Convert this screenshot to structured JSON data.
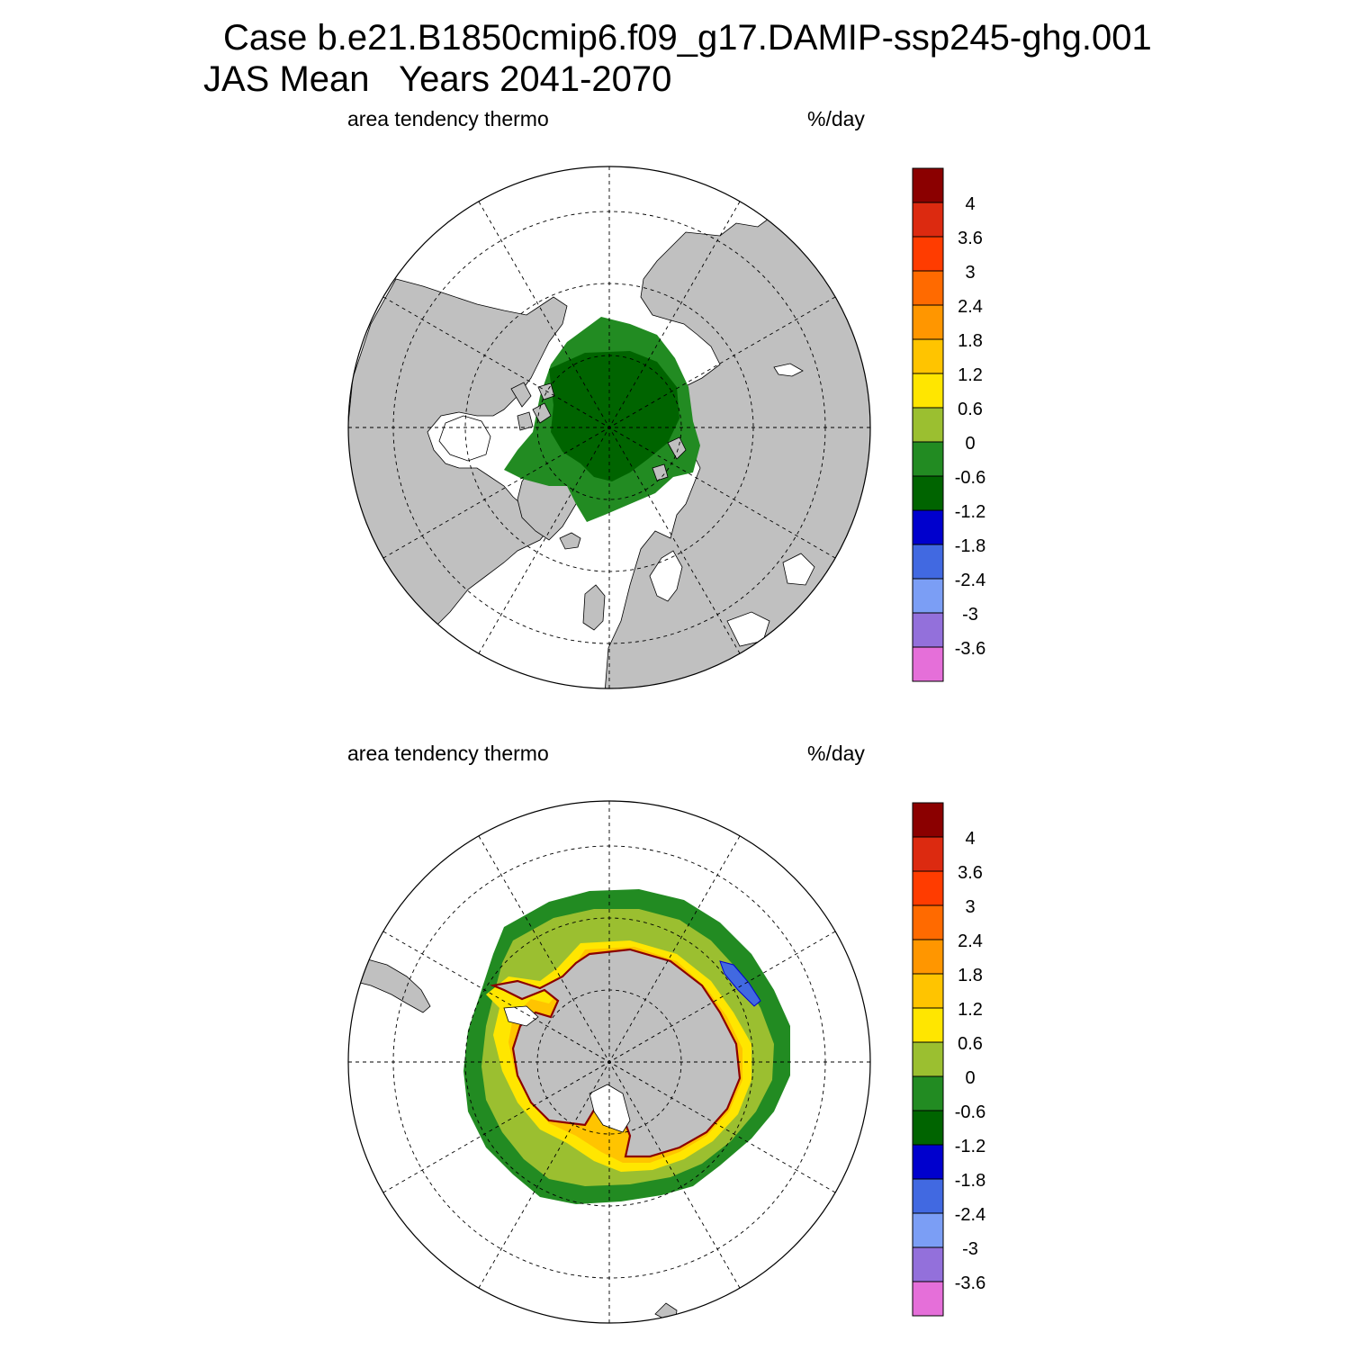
{
  "header": {
    "line1": "Case b.e21.B1850cmip6.f09_g17.DAMIP-ssp245-ghg.001",
    "line2": "JAS Mean   Years 2041-2070"
  },
  "panels": [
    {
      "hemisphere": "north",
      "left_label": "area tendency thermo",
      "right_label": "%/day"
    },
    {
      "hemisphere": "south",
      "left_label": "area tendency thermo",
      "right_label": "%/day"
    }
  ],
  "colorbar": {
    "labels": [
      "4",
      "3.6",
      "3",
      "2.4",
      "1.8",
      "1.2",
      "0.6",
      "0",
      "-0.6",
      "-1.2",
      "-1.8",
      "-2.4",
      "-3",
      "-3.6"
    ],
    "colors": [
      "#8b0000",
      "#dc2a10",
      "#ff3c00",
      "#ff6a00",
      "#ff9600",
      "#ffc400",
      "#ffe600",
      "#9bbf30",
      "#228b22",
      "#006400",
      "#0000cd",
      "#4169e1",
      "#7b9ef5",
      "#9370db",
      "#e56fd9"
    ]
  },
  "map_colors": {
    "land": "#c0c0c0",
    "ocean": "#ffffff",
    "coast": "#000000"
  }
}
